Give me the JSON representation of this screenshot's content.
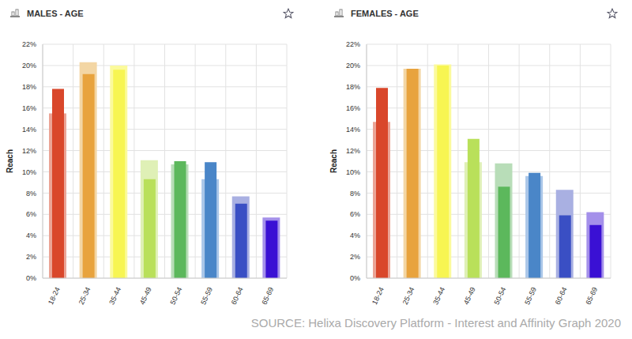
{
  "chart_data": [
    {
      "type": "bar",
      "title": "MALES - AGE",
      "y_label": "Reach",
      "categories": [
        "18-24",
        "25-34",
        "35-44",
        "45-49",
        "50-54",
        "55-59",
        "60-64",
        "65-69"
      ],
      "series": [
        {
          "colors": [
            "#eba496",
            "#f3d6a4",
            "#fbfa9c",
            "#dff0b6",
            "#b8ddb8",
            "#aac6e8",
            "#a9b0e2",
            "#a490ea"
          ],
          "values": [
            15.5,
            20.3,
            20.0,
            11.1,
            10.7,
            9.3,
            7.7,
            5.7
          ]
        },
        {
          "colors": [
            "#d9472b",
            "#e8a33d",
            "#f7f552",
            "#b9e05a",
            "#5cb85c",
            "#4a86c8",
            "#3a4fc4",
            "#3a10d4"
          ],
          "values": [
            17.8,
            19.2,
            19.6,
            9.3,
            11.0,
            10.9,
            7.0,
            5.4
          ]
        }
      ],
      "ylim": [
        0,
        22
      ],
      "yticks": [
        {
          "value": 0,
          "label": "0%"
        },
        {
          "value": 2,
          "label": "2%"
        },
        {
          "value": 4,
          "label": "4%"
        },
        {
          "value": 6,
          "label": "6%"
        },
        {
          "value": 8,
          "label": "8%"
        },
        {
          "value": 10,
          "label": "10%"
        },
        {
          "value": 12,
          "label": "12%"
        },
        {
          "value": 14,
          "label": "14%"
        },
        {
          "value": 16,
          "label": "16%"
        },
        {
          "value": 18,
          "label": "18%"
        },
        {
          "value": 20,
          "label": "20%"
        },
        {
          "value": 22,
          "label": "22%"
        }
      ],
      "grid": true
    },
    {
      "type": "bar",
      "title": "FEMALES - AGE",
      "y_label": "Reach",
      "categories": [
        "18-24",
        "25-34",
        "35-44",
        "45-49",
        "50-54",
        "55-59",
        "60-64",
        "65-69"
      ],
      "series": [
        {
          "colors": [
            "#eba496",
            "#f3d6a4",
            "#fbfa9c",
            "#dff0b6",
            "#b8ddb8",
            "#aac6e8",
            "#a9b0e2",
            "#a490ea"
          ],
          "values": [
            14.7,
            19.7,
            20.1,
            10.9,
            10.8,
            9.6,
            8.3,
            6.2
          ]
        },
        {
          "colors": [
            "#d9472b",
            "#e8a33d",
            "#f7f552",
            "#b9e05a",
            "#5cb85c",
            "#4a86c8",
            "#3a4fc4",
            "#3a10d4"
          ],
          "values": [
            17.9,
            19.7,
            20.0,
            13.1,
            8.6,
            9.9,
            5.9,
            5.0
          ]
        }
      ],
      "ylim": [
        0,
        22
      ],
      "yticks": [
        {
          "value": 0,
          "label": "0%"
        },
        {
          "value": 2,
          "label": "2%"
        },
        {
          "value": 4,
          "label": "4%"
        },
        {
          "value": 6,
          "label": "6%"
        },
        {
          "value": 8,
          "label": "8%"
        },
        {
          "value": 10,
          "label": "10%"
        },
        {
          "value": 12,
          "label": "12%"
        },
        {
          "value": 14,
          "label": "14%"
        },
        {
          "value": 16,
          "label": "16%"
        },
        {
          "value": 18,
          "label": "18%"
        },
        {
          "value": 20,
          "label": "20%"
        },
        {
          "value": 22,
          "label": "22%"
        }
      ],
      "grid": true
    }
  ],
  "source": "SOURCE: Helixa Discovery Platform - Interest and Affinity Graph 2020"
}
